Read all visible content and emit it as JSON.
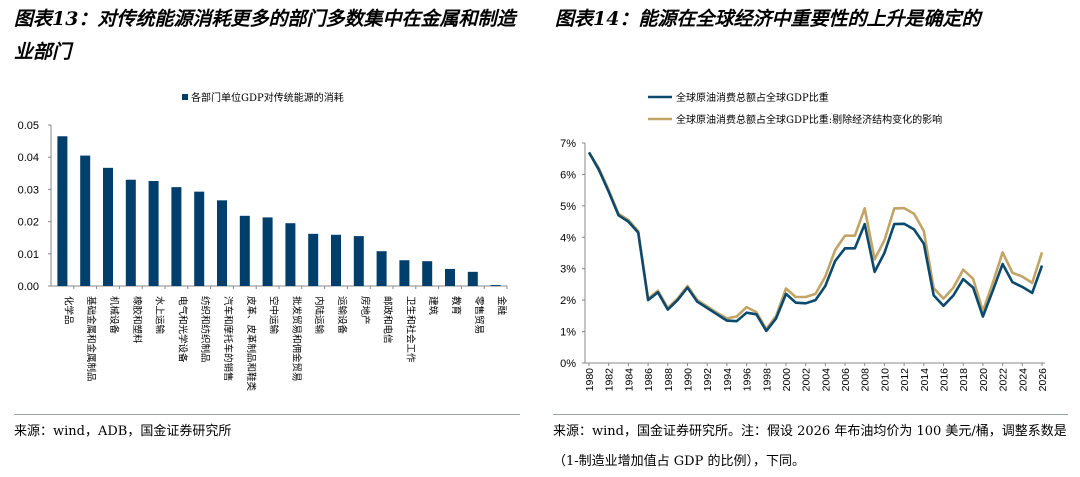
{
  "left": {
    "title": "图表13：对传统能源消耗更多的部门多数集中在金属和制造业部门",
    "source": "来源：wind，ADB，国金证券研究所"
  },
  "right": {
    "title": "图表14：能源在全球经济中重要性的上升是确定的",
    "source": "来源：wind，国金证券研究所。注：假设 2026 年布油均价为 100 美元/桶，调整系数是（1-制造业增加值占 GDP 的比例），下同。"
  },
  "chart_data": [
    {
      "type": "bar",
      "legend_position": "top",
      "series": [
        {
          "name": "各部门单位GDP对传统能源的消耗",
          "color": "#003f6b",
          "values": [
            0.0465,
            0.0405,
            0.0367,
            0.033,
            0.0326,
            0.0307,
            0.0293,
            0.0266,
            0.0218,
            0.0213,
            0.0195,
            0.0162,
            0.0159,
            0.0155,
            0.0108,
            0.008,
            0.0077,
            0.0053,
            0.0044,
            0.0003
          ]
        }
      ],
      "categories": [
        "化学品",
        "基础金属和金属制品",
        "机械设备",
        "橡胶和塑料",
        "水上运输",
        "电气和光学设备",
        "纺织和纺织制品",
        "汽车和摩托车的销售",
        "皮革、皮革制品和鞋类",
        "空中运输",
        "批发贸易和佣金贸易",
        "内陆运输",
        "运输设备",
        "房地产",
        "邮政和电信",
        "卫生和社会工作",
        "建筑",
        "教育",
        "零售贸易",
        "金融"
      ],
      "yticks": [
        "0.00",
        "0.01",
        "0.02",
        "0.03",
        "0.04",
        "0.05"
      ],
      "ylim": [
        0,
        0.05
      ]
    },
    {
      "type": "line",
      "legend_position": "top-left",
      "x": [
        1980,
        1981,
        1982,
        1983,
        1984,
        1985,
        1986,
        1987,
        1988,
        1989,
        1990,
        1991,
        1992,
        1993,
        1994,
        1995,
        1996,
        1997,
        1998,
        1999,
        2000,
        2001,
        2002,
        2003,
        2004,
        2005,
        2006,
        2007,
        2008,
        2009,
        2010,
        2011,
        2012,
        2013,
        2014,
        2015,
        2016,
        2017,
        2018,
        2019,
        2020,
        2021,
        2022,
        2023,
        2024,
        2025,
        2026
      ],
      "series": [
        {
          "name": "全球原油消费总额占全球GDP比重",
          "color": "#0b4a6e",
          "values": [
            6.7,
            6.15,
            5.45,
            4.7,
            4.5,
            4.15,
            2.0,
            2.25,
            1.7,
            2.0,
            2.4,
            1.95,
            1.75,
            1.55,
            1.35,
            1.33,
            1.6,
            1.55,
            1.02,
            1.42,
            2.2,
            1.92,
            1.9,
            2.0,
            2.45,
            3.25,
            3.65,
            3.65,
            4.42,
            2.9,
            3.5,
            4.42,
            4.43,
            4.25,
            3.8,
            2.15,
            1.82,
            2.15,
            2.67,
            2.4,
            1.48,
            2.3,
            3.15,
            2.57,
            2.42,
            2.23,
            3.1
          ]
        },
        {
          "name": "全球原油消费总额占全球GDP比重:剔除经济结构变化的影响",
          "color": "#c3a467",
          "values": [
            6.7,
            6.2,
            5.5,
            4.75,
            4.55,
            4.2,
            2.05,
            2.3,
            1.75,
            2.05,
            2.45,
            2.0,
            1.8,
            1.6,
            1.42,
            1.48,
            1.78,
            1.62,
            1.08,
            1.5,
            2.37,
            2.1,
            2.1,
            2.2,
            2.75,
            3.6,
            4.05,
            4.05,
            4.92,
            3.3,
            3.9,
            4.92,
            4.93,
            4.75,
            4.2,
            2.38,
            2.05,
            2.4,
            2.97,
            2.68,
            1.65,
            2.55,
            3.52,
            2.87,
            2.75,
            2.55,
            3.52
          ]
        }
      ],
      "yticks": [
        "0%",
        "1%",
        "2%",
        "3%",
        "4%",
        "5%",
        "6%",
        "7%"
      ],
      "xticks": [
        "1980",
        "1982",
        "1984",
        "1986",
        "1988",
        "1990",
        "1992",
        "1994",
        "1996",
        "1998",
        "2000",
        "2002",
        "2004",
        "2006",
        "2008",
        "2010",
        "2012",
        "2014",
        "2016",
        "2018",
        "2020",
        "2022",
        "2024",
        "2026"
      ],
      "ylim": [
        0,
        7
      ]
    }
  ]
}
